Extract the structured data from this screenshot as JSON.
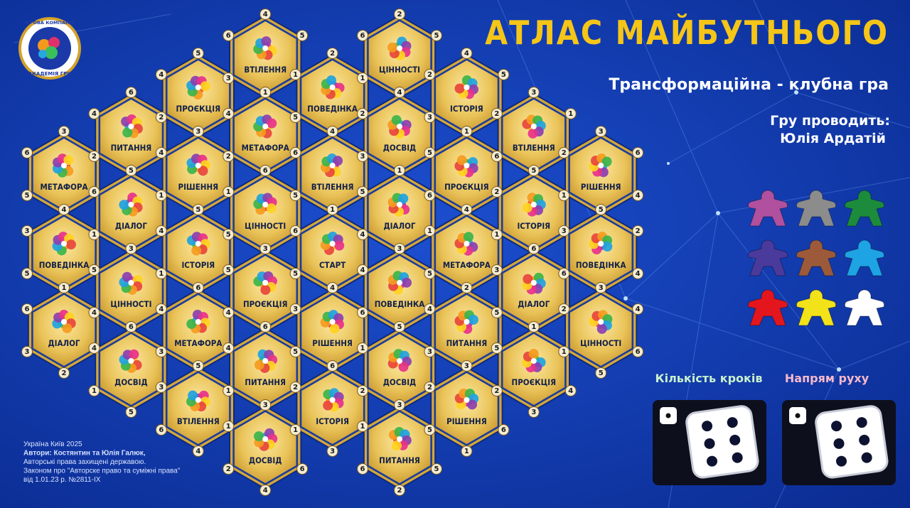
{
  "header": {
    "title": "АТЛАС МАЙБУТНЬОГО",
    "subtitle": "Трансформаційна - клубна гра",
    "host_label": "Гру проводить:",
    "host": "Юлія Ардатій"
  },
  "logo": {
    "top": "ІГРОВА КОМПАНІЯ",
    "bottom": "АКАДЕМІЯ ГРИ"
  },
  "board": {
    "tiles": [
      {
        "label": "МЕТАФОРА",
        "numbers": [
          3,
          2,
          1,
          4,
          5,
          6
        ]
      },
      {
        "label": "ПОВЕДІНКА",
        "numbers": [
          4,
          2,
          6,
          1,
          5,
          3
        ]
      },
      {
        "label": "ДІАЛОГ",
        "numbers": [
          1,
          5,
          4,
          2,
          3,
          6
        ]
      },
      {
        "label": "ПИТАННЯ",
        "numbers": [
          6,
          1,
          3,
          5,
          2,
          4
        ]
      },
      {
        "label": "ДІАЛОГ",
        "numbers": [
          5,
          2,
          3,
          4,
          1,
          6
        ]
      },
      {
        "label": "ЦІННОСТІ",
        "numbers": [
          3,
          1,
          2,
          6,
          4,
          5
        ]
      },
      {
        "label": "ДОСВІД",
        "numbers": [
          6,
          2,
          3,
          5,
          1,
          4
        ]
      },
      {
        "label": "ПРОЄКЦІЯ",
        "numbers": [
          5,
          1,
          6,
          3,
          2,
          4
        ]
      },
      {
        "label": "РІШЕННЯ",
        "numbers": [
          3,
          5,
          2,
          6,
          1,
          4
        ]
      },
      {
        "label": "ІСТОРІЯ",
        "numbers": [
          5,
          2,
          3,
          6,
          1,
          4
        ]
      },
      {
        "label": "МЕТАФОРА",
        "numbers": [
          6,
          5,
          2,
          1,
          3,
          4
        ]
      },
      {
        "label": "ВТІЛЕННЯ",
        "numbers": [
          5,
          2,
          1,
          4,
          6,
          3
        ]
      },
      {
        "label": "ВТІЛЕННЯ",
        "numbers": [
          4,
          5,
          2,
          1,
          3,
          6
        ]
      },
      {
        "label": "МЕТАФОРА",
        "numbers": [
          1,
          5,
          3,
          6,
          2,
          4
        ]
      },
      {
        "label": "ЦІННОСТІ",
        "numbers": [
          6,
          2,
          4,
          3,
          5,
          1
        ]
      },
      {
        "label": "ПРОЄКЦІЯ",
        "numbers": [
          3,
          1,
          2,
          6,
          4,
          5
        ]
      },
      {
        "label": "ПИТАННЯ",
        "numbers": [
          6,
          2,
          3,
          5,
          1,
          4
        ]
      },
      {
        "label": "ДОСВІД",
        "numbers": [
          3,
          5,
          6,
          4,
          2,
          1
        ]
      },
      {
        "label": "ПОВЕДІНКА",
        "numbers": [
          2,
          6,
          3,
          4,
          5,
          1
        ]
      },
      {
        "label": "ВТІЛЕННЯ",
        "numbers": [
          4,
          2,
          3,
          1,
          5,
          6
        ]
      },
      {
        "label": "СТАРТ",
        "numbers": [
          1,
          2,
          3,
          4,
          5,
          6
        ]
      },
      {
        "label": "РІШЕННЯ",
        "numbers": [
          4,
          1,
          2,
          6,
          5,
          3
        ]
      },
      {
        "label": "ІСТОРІЯ",
        "numbers": [
          6,
          4,
          5,
          3,
          1,
          2
        ]
      },
      {
        "label": "ЦІННОСТІ",
        "numbers": [
          2,
          5,
          3,
          4,
          1,
          6
        ]
      },
      {
        "label": "ДОСВІД",
        "numbers": [
          4,
          6,
          1,
          5,
          3,
          2
        ]
      },
      {
        "label": "ДІАЛОГ",
        "numbers": [
          1,
          2,
          6,
          3,
          4,
          5
        ]
      },
      {
        "label": "ПОВЕДІНКА",
        "numbers": [
          3,
          5,
          1,
          2,
          6,
          4
        ]
      },
      {
        "label": "ДОСВІД",
        "numbers": [
          5,
          4,
          3,
          6,
          2,
          1
        ]
      },
      {
        "label": "ПИТАННЯ",
        "numbers": [
          3,
          4,
          5,
          2,
          6,
          1
        ]
      },
      {
        "label": "ІСТОРІЯ",
        "numbers": [
          4,
          5,
          6,
          1,
          3,
          2
        ]
      },
      {
        "label": "ПРОЄКЦІЯ",
        "numbers": [
          1,
          2,
          3,
          4,
          6,
          5
        ]
      },
      {
        "label": "МЕТАФОРА",
        "numbers": [
          4,
          6,
          2,
          3,
          5,
          1
        ]
      },
      {
        "label": "ПИТАННЯ",
        "numbers": [
          2,
          1,
          6,
          5,
          3,
          4
        ]
      },
      {
        "label": "РІШЕННЯ",
        "numbers": [
          3,
          4,
          6,
          1,
          5,
          2
        ]
      },
      {
        "label": "ВТІЛЕННЯ",
        "numbers": [
          3,
          1,
          4,
          5,
          6,
          2
        ]
      },
      {
        "label": "ІСТОРІЯ",
        "numbers": [
          5,
          6,
          3,
          4,
          1,
          2
        ]
      },
      {
        "label": "ДІАЛОГ",
        "numbers": [
          6,
          1,
          2,
          4,
          5,
          3
        ]
      },
      {
        "label": "ПРОЄКЦІЯ",
        "numbers": [
          1,
          6,
          4,
          3,
          2,
          5
        ]
      },
      {
        "label": "РІШЕННЯ",
        "numbers": [
          3,
          6,
          4,
          5,
          1,
          2
        ]
      },
      {
        "label": "ПОВЕДІНКА",
        "numbers": [
          5,
          2,
          4,
          1,
          6,
          3
        ]
      },
      {
        "label": "ЦІННОСТІ",
        "numbers": [
          3,
          4,
          6,
          5,
          1,
          2
        ]
      }
    ]
  },
  "dice": {
    "steps": "Кількість кроків",
    "direction": "Напрям руху"
  },
  "footer": {
    "lines": [
      "Україна Київ 2025",
      "Автори: Костянтин та Юлія Галюк,",
      "Авторські права захищені державою.",
      "Законом про \"Авторске право та суміжні права\"",
      "від 1.01.23 р. №2811-IX"
    ]
  }
}
